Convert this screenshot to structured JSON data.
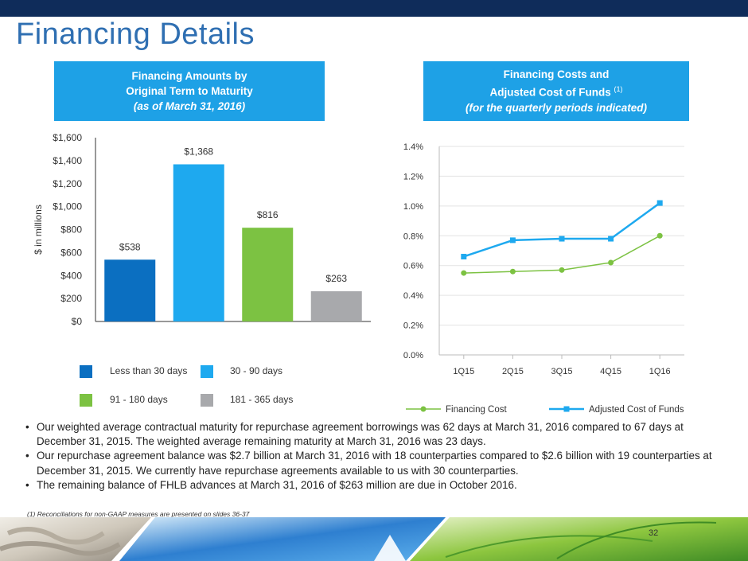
{
  "title": "Financing Details",
  "left_panel": {
    "line1": "Financing Amounts by",
    "line2": "Original Term to Maturity",
    "line3": "(as of March 31, 2016)"
  },
  "right_panel": {
    "line1": "Financing Costs and",
    "line2": "Adjusted Cost of Funds",
    "line2_sup": "(1)",
    "line3": "(for the quarterly periods indicated)"
  },
  "chart_data": [
    {
      "type": "bar",
      "ylabel": "$ in millions",
      "ylim": [
        0,
        1600
      ],
      "yticks": [
        "$0",
        "$200",
        "$400",
        "$600",
        "$800",
        "$1,000",
        "$1,200",
        "$1,400",
        "$1,600"
      ],
      "categories": [
        "Less than 30 days",
        "30 - 90 days",
        "91 - 180 days",
        "181 - 365 days"
      ],
      "values": [
        538,
        1368,
        816,
        263
      ],
      "value_labels": [
        "$538",
        "$1,368",
        "$816",
        "$263"
      ],
      "colors": [
        "#0b6fc1",
        "#1ea9ef",
        "#7cc242",
        "#a8a9ac"
      ]
    },
    {
      "type": "line",
      "x": [
        "1Q15",
        "2Q15",
        "3Q15",
        "4Q15",
        "1Q16"
      ],
      "ylim": [
        0,
        1.4
      ],
      "yticks": [
        "0.0%",
        "0.2%",
        "0.4%",
        "0.6%",
        "0.8%",
        "1.0%",
        "1.2%",
        "1.4%"
      ],
      "series": [
        {
          "name": "Financing Cost",
          "values": [
            0.55,
            0.56,
            0.57,
            0.62,
            0.8
          ],
          "color": "#7cc242",
          "marker": "circle"
        },
        {
          "name": "Adjusted Cost of Funds",
          "values": [
            0.66,
            0.77,
            0.78,
            0.78,
            1.02
          ],
          "color": "#1ea9ef",
          "marker": "square"
        }
      ]
    }
  ],
  "bullets": [
    "Our weighted average contractual maturity for repurchase agreement borrowings was 62 days at March 31, 2016 compared to 67 days at December 31, 2015. The weighted average remaining maturity at March 31, 2016 was 23 days.",
    "Our repurchase agreement balance was $2.7 billion at March 31, 2016 with 18 counterparties compared to $2.6 billion with 19 counterparties at December 31, 2015. We currently have repurchase agreements available to us with 30 counterparties.",
    "The remaining balance of FHLB advances at March 31, 2016 of $263 million are due in October 2016."
  ],
  "footnote": "(1)    Reconciliations for non-GAAP measures are presented on slides 36-37",
  "page_number": "32"
}
